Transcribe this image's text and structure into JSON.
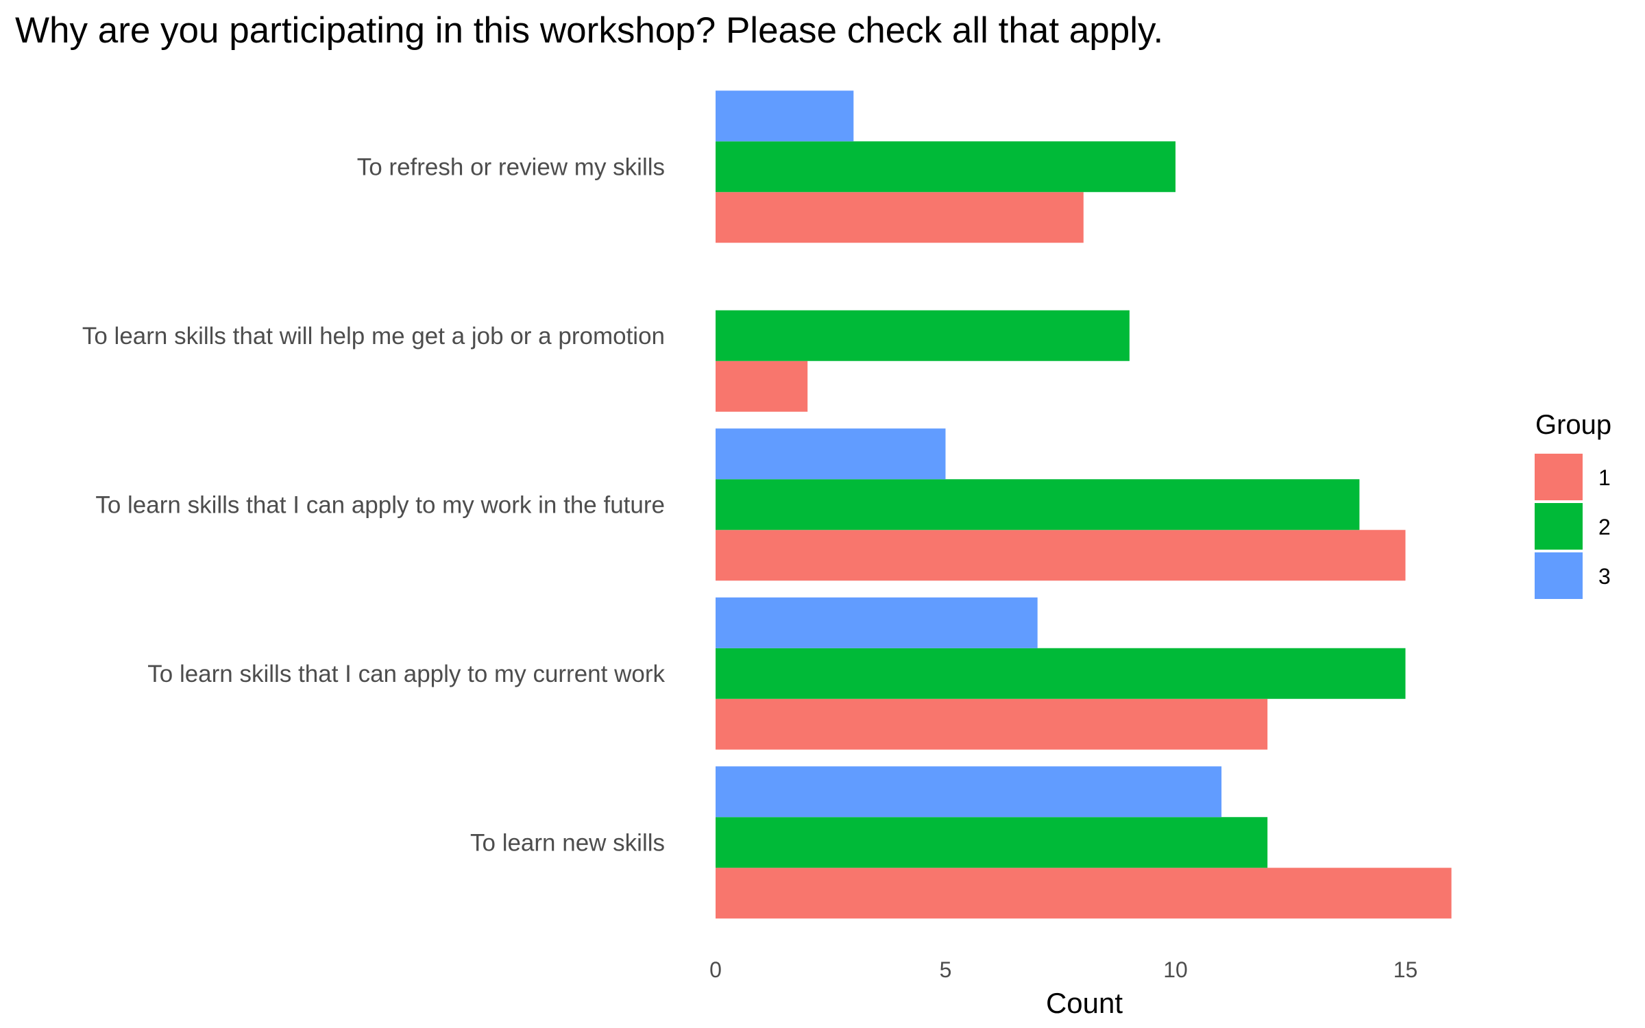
{
  "chart_data": {
    "type": "bar",
    "orientation": "horizontal",
    "title": "Why are you participating in this workshop? Please check all that apply.",
    "xlabel": "Count",
    "ylabel": "",
    "xlim": [
      0,
      17.5
    ],
    "xticks": [
      0,
      5,
      10,
      15
    ],
    "grid": false,
    "legend_title": "Group",
    "legend_position": "right",
    "categories": [
      "To refresh or review my skills",
      "To learn skills that will help me get a job or a promotion",
      "To learn skills that I can apply to my work in the future",
      "To learn skills that I can apply to my current work",
      "To learn new skills"
    ],
    "series": [
      {
        "name": "1",
        "color": "#F8766D",
        "values": [
          8,
          2,
          15,
          12,
          16
        ]
      },
      {
        "name": "2",
        "color": "#00BA38",
        "values": [
          10,
          9,
          14,
          15,
          12
        ]
      },
      {
        "name": "3",
        "color": "#619CFF",
        "values": [
          3,
          null,
          5,
          7,
          11
        ]
      }
    ]
  }
}
